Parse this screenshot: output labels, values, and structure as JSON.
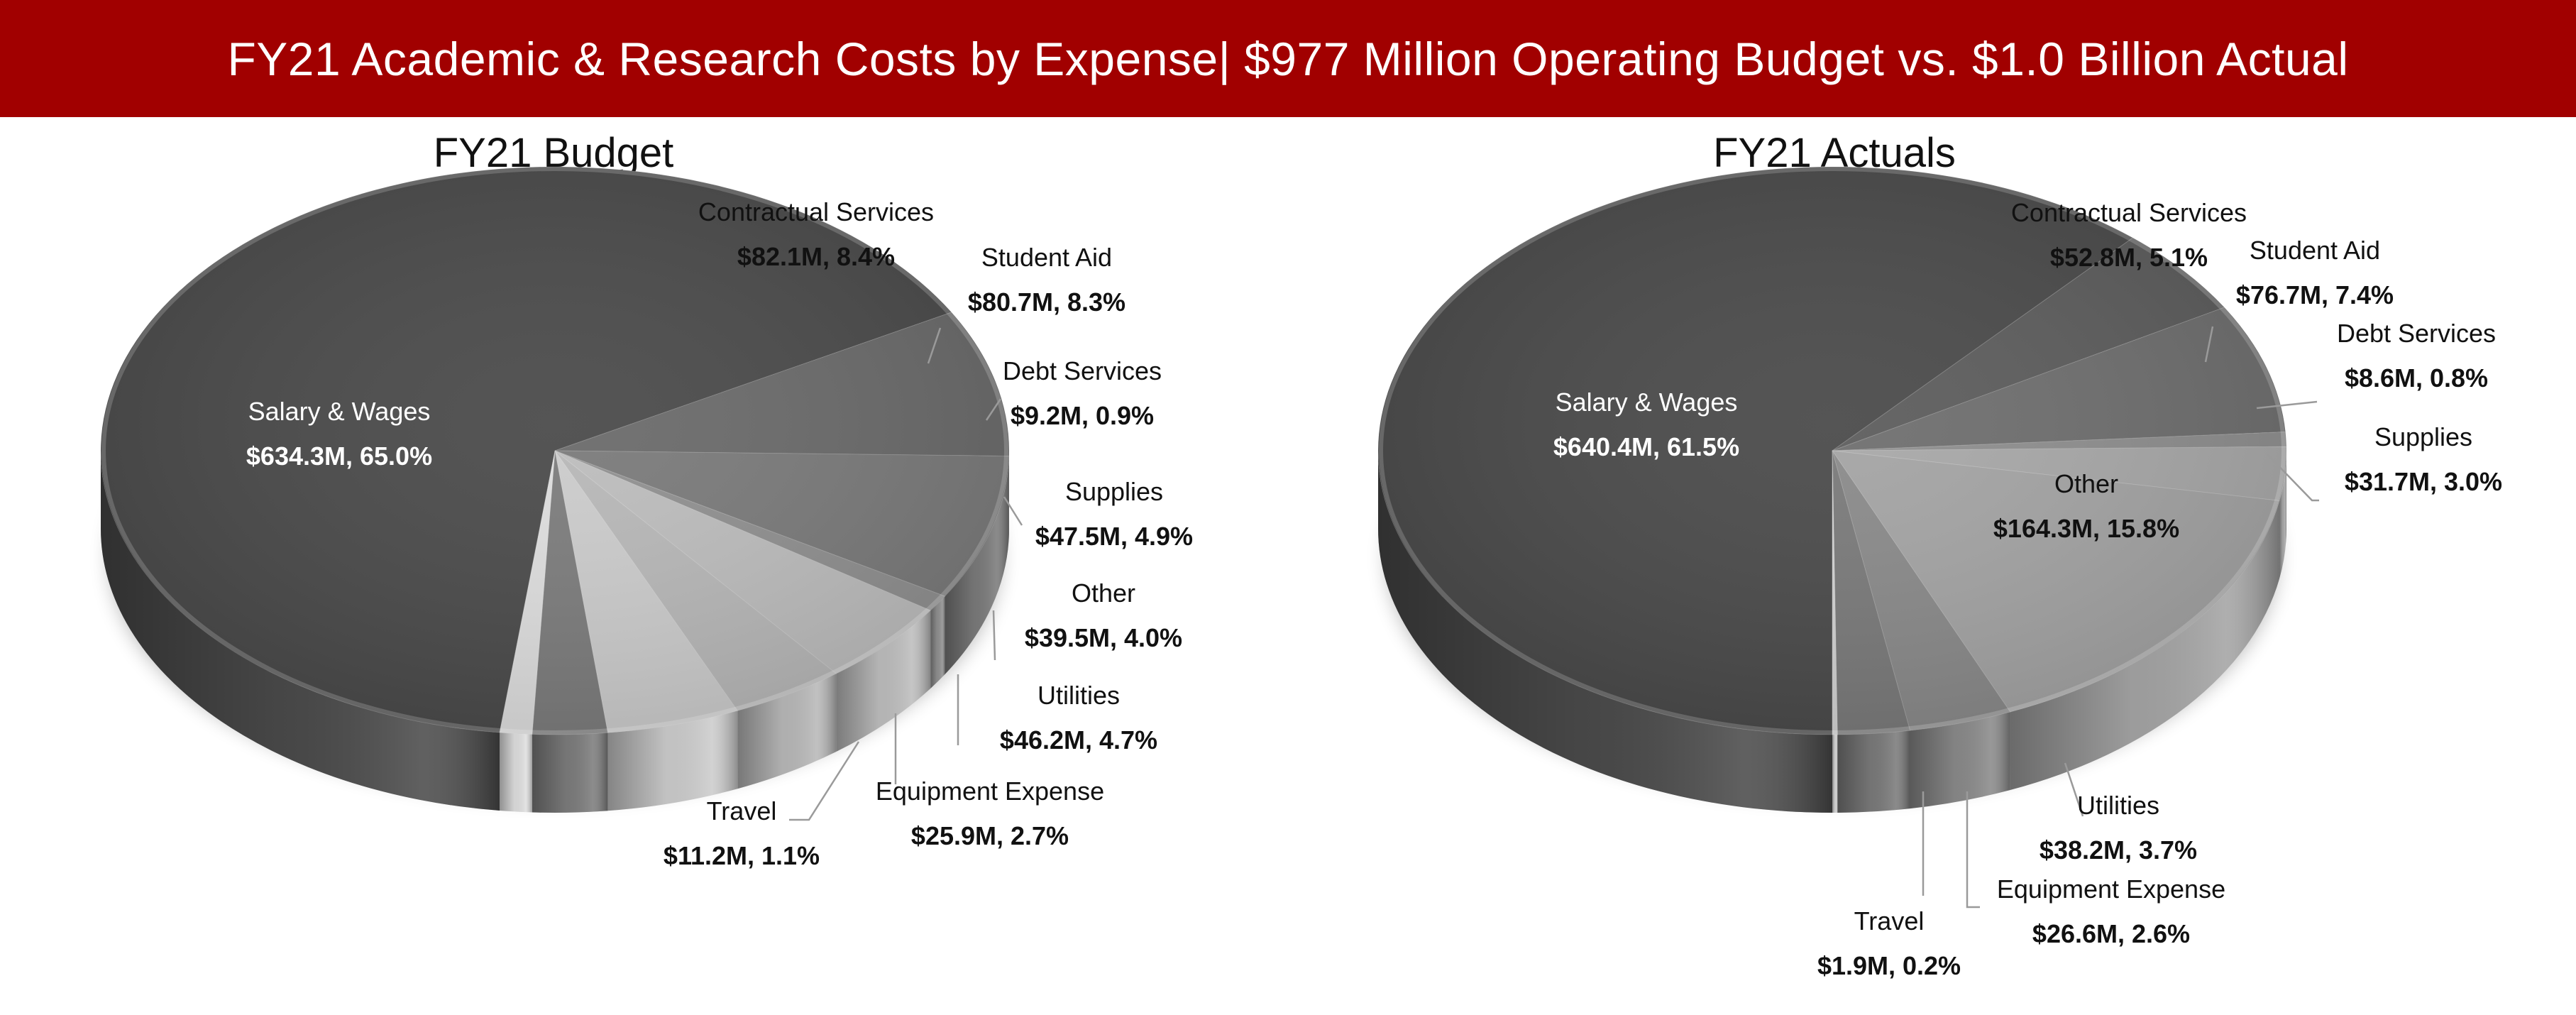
{
  "header": {
    "title": "FY21 Academic & Research Costs by Expense| $977 Million Operating Budget vs. $1.0 Billion Actual",
    "background": "#a10000"
  },
  "chart_data": [
    {
      "type": "pie",
      "title": "FY21 Budget",
      "slices": [
        {
          "name": "Salary & Wages",
          "value": 634.3,
          "percent": 65.0,
          "value_label": "$634.3M, 65.0%"
        },
        {
          "name": "Contractual Services",
          "value": 82.1,
          "percent": 8.4,
          "value_label": "$82.1M, 8.4%"
        },
        {
          "name": "Student Aid",
          "value": 80.7,
          "percent": 8.3,
          "value_label": "$80.7M, 8.3%"
        },
        {
          "name": "Debt Services",
          "value": 9.2,
          "percent": 0.9,
          "value_label": "$9.2M, 0.9%"
        },
        {
          "name": "Supplies",
          "value": 47.5,
          "percent": 4.9,
          "value_label": "$47.5M, 4.9%"
        },
        {
          "name": "Other",
          "value": 39.5,
          "percent": 4.0,
          "value_label": "$39.5M, 4.0%"
        },
        {
          "name": "Utilities",
          "value": 46.2,
          "percent": 4.7,
          "value_label": "$46.2M, 4.7%"
        },
        {
          "name": "Equipment Expense",
          "value": 25.9,
          "percent": 2.7,
          "value_label": "$25.9M, 2.7%"
        },
        {
          "name": "Travel",
          "value": 11.2,
          "percent": 1.1,
          "value_label": "$11.2M, 1.1%"
        }
      ],
      "colors": [
        "#4a4a4a",
        "#6a6a6a",
        "#7a7a7a",
        "#909090",
        "#bdbdbd",
        "#b8b8b8",
        "#cccccc",
        "#7c7c7c",
        "#dedede"
      ]
    },
    {
      "type": "pie",
      "title": "FY21 Actuals",
      "slices": [
        {
          "name": "Salary & Wages",
          "value": 640.4,
          "percent": 61.5,
          "value_label": "$640.4M, 61.5%"
        },
        {
          "name": "Contractual Services",
          "value": 52.8,
          "percent": 5.1,
          "value_label": "$52.8M, 5.1%"
        },
        {
          "name": "Student Aid",
          "value": 76.7,
          "percent": 7.4,
          "value_label": "$76.7M, 7.4%"
        },
        {
          "name": "Debt Services",
          "value": 8.6,
          "percent": 0.8,
          "value_label": "$8.6M, 0.8%"
        },
        {
          "name": "Supplies",
          "value": 31.7,
          "percent": 3.0,
          "value_label": "$31.7M, 3.0%"
        },
        {
          "name": "Other",
          "value": 164.3,
          "percent": 15.8,
          "value_label": "$164.3M, 15.8%"
        },
        {
          "name": "Utilities",
          "value": 38.2,
          "percent": 3.7,
          "value_label": "$38.2M, 3.7%"
        },
        {
          "name": "Equipment Expense",
          "value": 26.6,
          "percent": 2.6,
          "value_label": "$26.6M, 2.6%"
        },
        {
          "name": "Travel",
          "value": 1.9,
          "percent": 0.2,
          "value_label": "$1.9M, 0.2%"
        }
      ],
      "colors": [
        "#4a4a4a",
        "#5c5c5c",
        "#6e6e6e",
        "#8e8e8e",
        "#a8a8a8",
        "#a4a4a4",
        "#8a8a8a",
        "#7a7a7a",
        "#d2d2d2"
      ]
    }
  ]
}
